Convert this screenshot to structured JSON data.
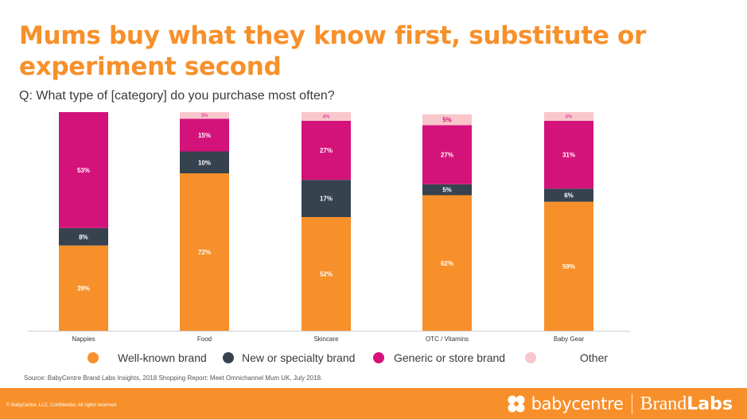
{
  "header": {
    "title": "Mums buy what they know first, substitute or experiment second",
    "subtitle": "Q: What type of [category] do you purchase most often?"
  },
  "chart_data": {
    "type": "bar",
    "stacked": true,
    "categories": [
      "Nappies",
      "Food",
      "Skincare",
      "OTC / Vitamins",
      "Baby Gear"
    ],
    "series": [
      {
        "name": "Well-known brand",
        "color": "#f7902a",
        "values": [
          39,
          72,
          52,
          62,
          59
        ]
      },
      {
        "name": "New or specialty brand",
        "color": "#36424e",
        "values": [
          8,
          10,
          17,
          5,
          6
        ]
      },
      {
        "name": "Generic or store brand",
        "color": "#d3137a",
        "values": [
          53,
          15,
          27,
          27,
          31
        ]
      },
      {
        "name": "Other",
        "color": "#f9c6cc",
        "values": [
          null,
          3,
          4,
          5,
          4
        ]
      }
    ],
    "ylim": [
      0,
      100
    ],
    "value_suffix": "%",
    "grid": false,
    "legend_position": "bottom"
  },
  "legend": {
    "items": [
      {
        "label": "Well-known brand",
        "color": "#f7902a"
      },
      {
        "label": "New or specialty brand",
        "color": "#36424e"
      },
      {
        "label": "Generic or store brand",
        "color": "#d3137a"
      },
      {
        "label": "Other",
        "color": "#f9c6cc"
      }
    ]
  },
  "source": "Source: BabyCentre Brand Labs Insights, 2018 Shopping Report: Meet Omnichannel Mum UK, July 2018.",
  "footer": {
    "copyright": "© BabyCenter, LLC. Confidential. All rights reserved.",
    "logo_text": "babycentre",
    "brand_light": "Brand",
    "brand_bold": "Labs",
    "logo_icon": "babycentre-logo-icon"
  },
  "colors": {
    "accent": "#f7902a",
    "footer_bg": "#f7902a"
  }
}
